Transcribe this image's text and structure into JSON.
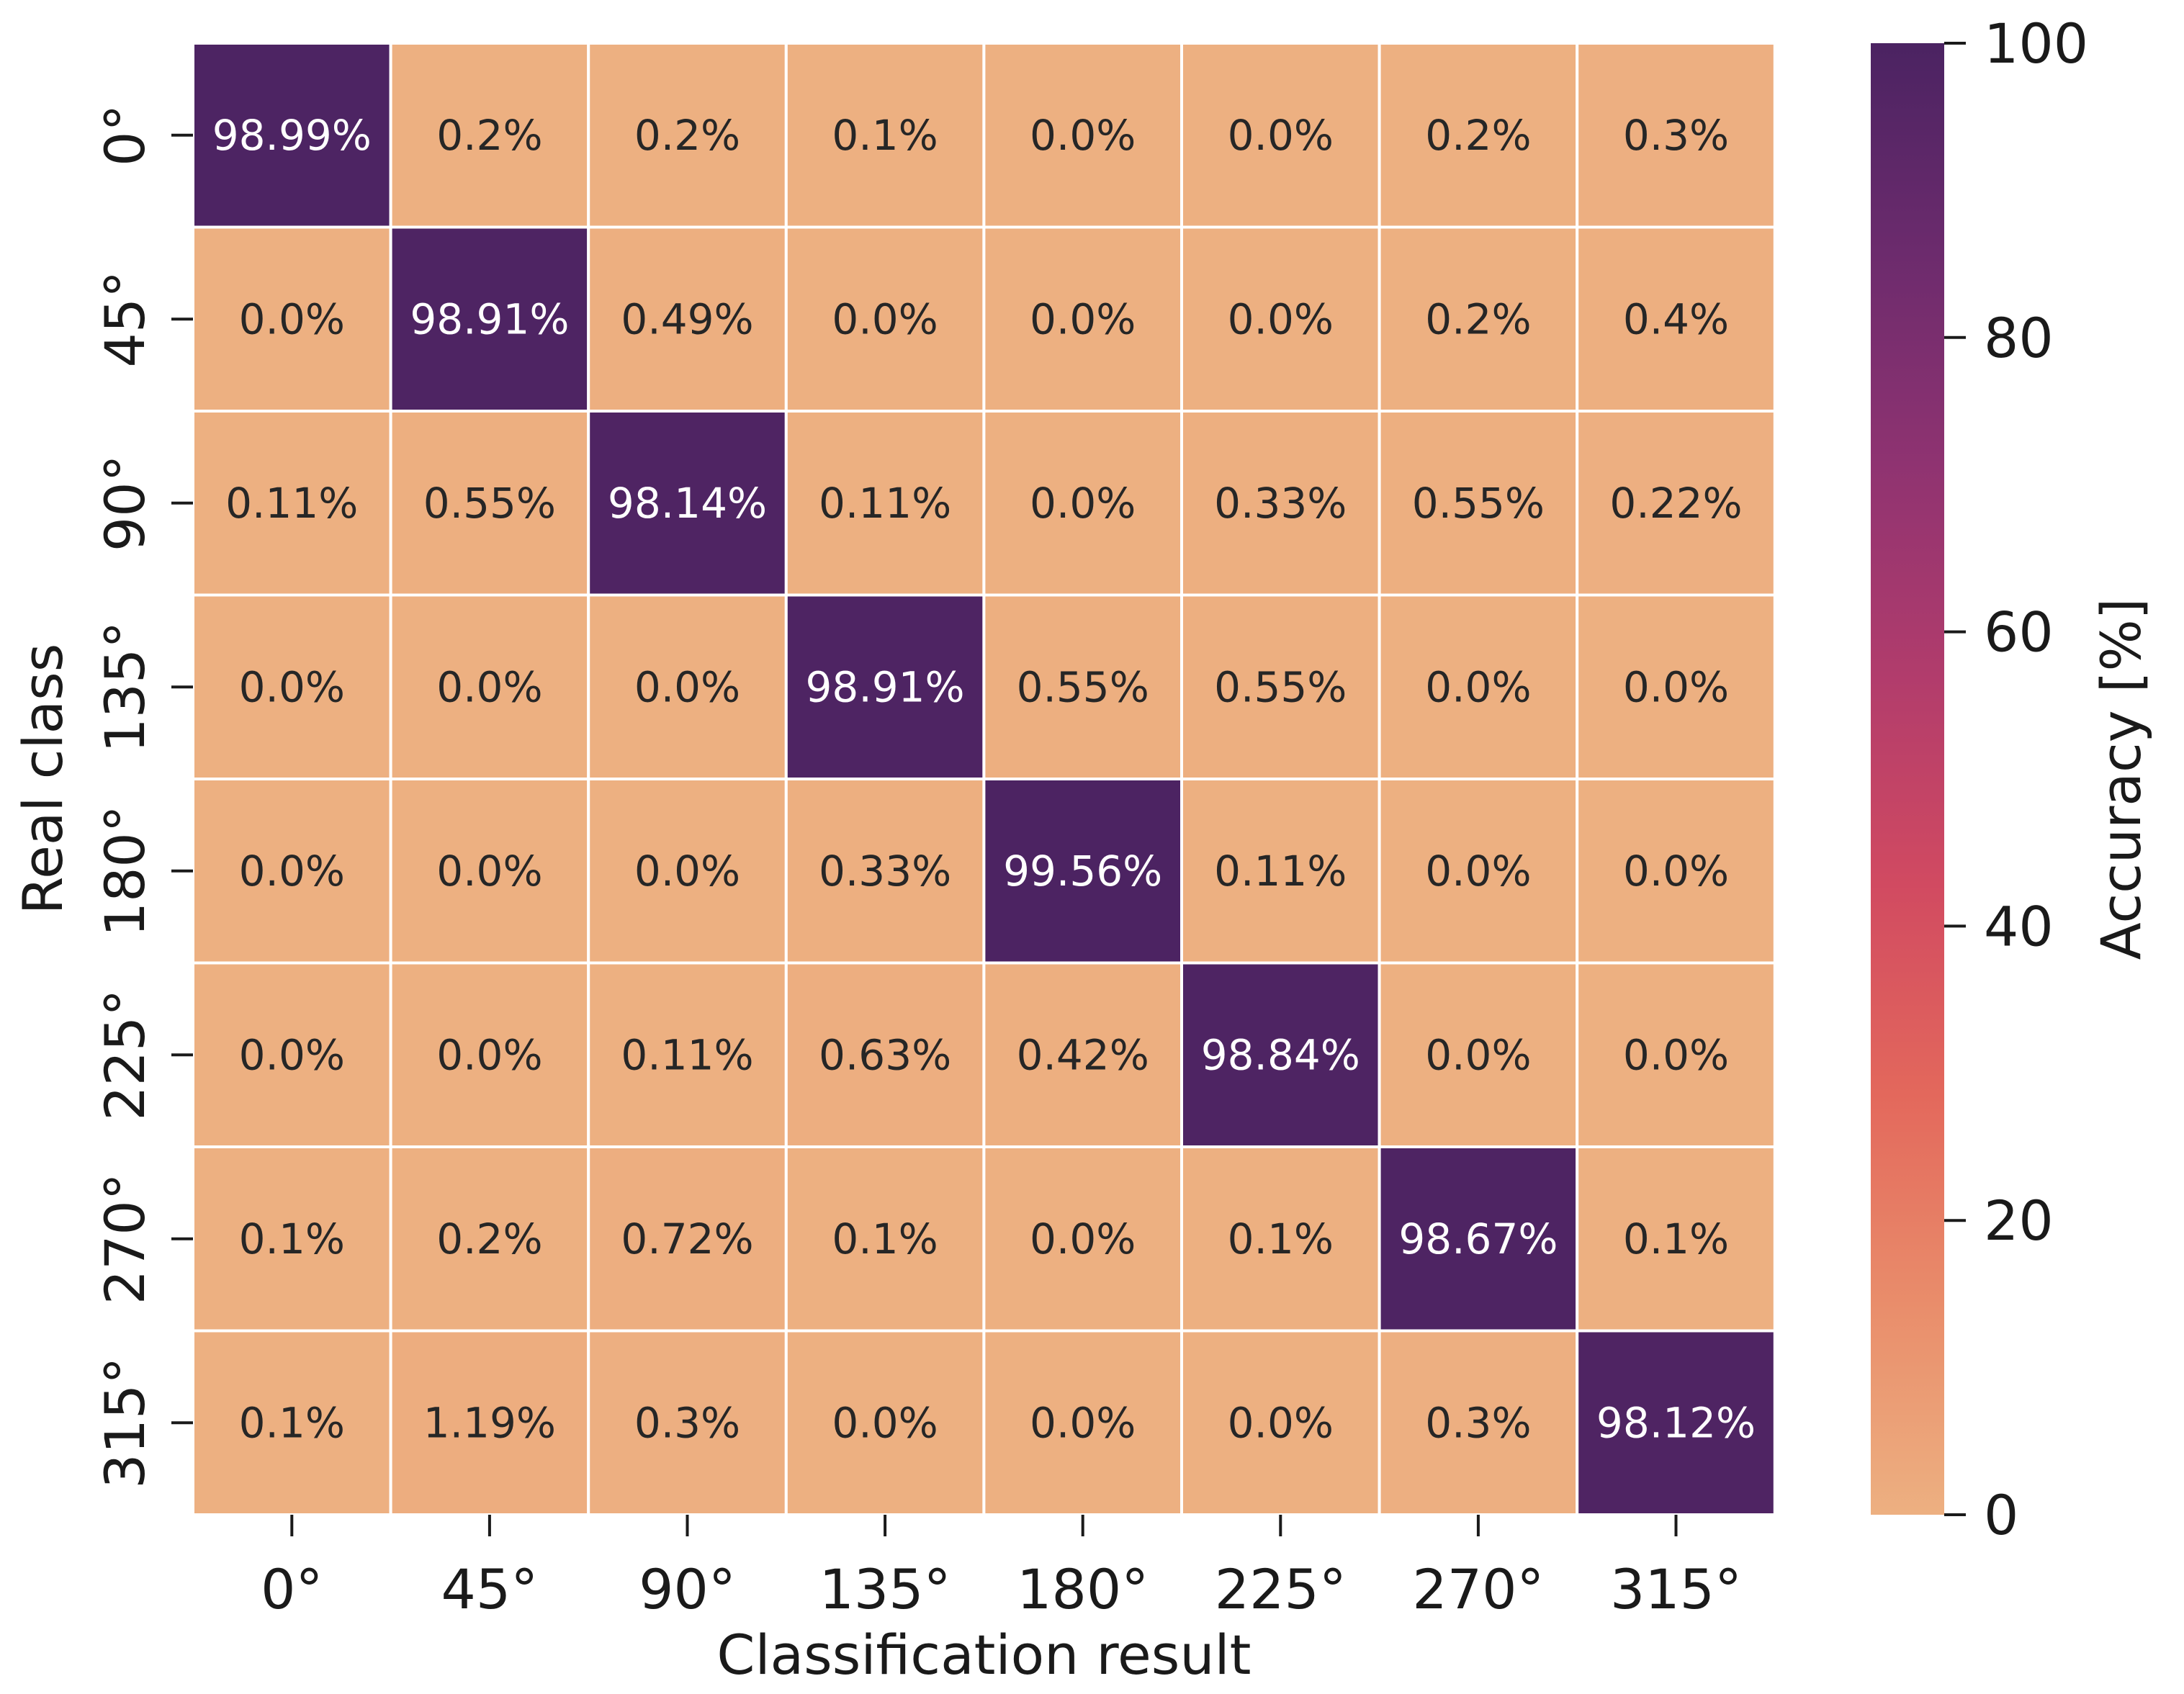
{
  "chart_data": {
    "type": "heatmap",
    "title": "",
    "xlabel": "Classification result",
    "ylabel": "Real class",
    "x_categories": [
      "0°",
      "45°",
      "90°",
      "135°",
      "180°",
      "225°",
      "270°",
      "315°"
    ],
    "y_categories": [
      "0°",
      "45°",
      "90°",
      "135°",
      "180°",
      "225°",
      "270°",
      "315°"
    ],
    "values": [
      [
        98.99,
        0.2,
        0.2,
        0.1,
        0.0,
        0.0,
        0.2,
        0.3
      ],
      [
        0.0,
        98.91,
        0.49,
        0.0,
        0.0,
        0.0,
        0.2,
        0.4
      ],
      [
        0.11,
        0.55,
        98.14,
        0.11,
        0.0,
        0.33,
        0.55,
        0.22
      ],
      [
        0.0,
        0.0,
        0.0,
        98.91,
        0.55,
        0.55,
        0.0,
        0.0
      ],
      [
        0.0,
        0.0,
        0.0,
        0.33,
        99.56,
        0.11,
        0.0,
        0.0
      ],
      [
        0.0,
        0.0,
        0.11,
        0.63,
        0.42,
        98.84,
        0.0,
        0.0
      ],
      [
        0.1,
        0.2,
        0.72,
        0.1,
        0.0,
        0.1,
        98.67,
        0.1
      ],
      [
        0.1,
        1.19,
        0.3,
        0.0,
        0.0,
        0.0,
        0.3,
        98.12
      ]
    ],
    "cell_labels": [
      [
        "98.99%",
        "0.2%",
        "0.2%",
        "0.1%",
        "0.0%",
        "0.0%",
        "0.2%",
        "0.3%"
      ],
      [
        "0.0%",
        "98.91%",
        "0.49%",
        "0.0%",
        "0.0%",
        "0.0%",
        "0.2%",
        "0.4%"
      ],
      [
        "0.11%",
        "0.55%",
        "98.14%",
        "0.11%",
        "0.0%",
        "0.33%",
        "0.55%",
        "0.22%"
      ],
      [
        "0.0%",
        "0.0%",
        "0.0%",
        "98.91%",
        "0.55%",
        "0.55%",
        "0.0%",
        "0.0%"
      ],
      [
        "0.0%",
        "0.0%",
        "0.0%",
        "0.33%",
        "99.56%",
        "0.11%",
        "0.0%",
        "0.0%"
      ],
      [
        "0.0%",
        "0.0%",
        "0.11%",
        "0.63%",
        "0.42%",
        "98.84%",
        "0.0%",
        "0.0%"
      ],
      [
        "0.1%",
        "0.2%",
        "0.72%",
        "0.1%",
        "0.0%",
        "0.1%",
        "98.67%",
        "0.1%"
      ],
      [
        "0.1%",
        "1.19%",
        "0.3%",
        "0.0%",
        "0.0%",
        "0.0%",
        "0.3%",
        "98.12%"
      ]
    ],
    "colorbar": {
      "label": "Accuracy [%]",
      "range": [
        0,
        100
      ],
      "ticks": [
        0,
        20,
        40,
        60,
        80,
        100
      ],
      "tick_labels": [
        "0",
        "20",
        "40",
        "60",
        "80",
        "100"
      ]
    },
    "colormap": {
      "name": "flare",
      "stops": [
        "#edb081",
        "#e98d6b",
        "#e3685c",
        "#d14a61",
        "#b13c6c",
        "#8f3371",
        "#6c2b6d",
        "#4b2362"
      ]
    },
    "cell_text_colors": {
      "dark_bg": "#ffffff",
      "light_bg": "#262626"
    }
  }
}
